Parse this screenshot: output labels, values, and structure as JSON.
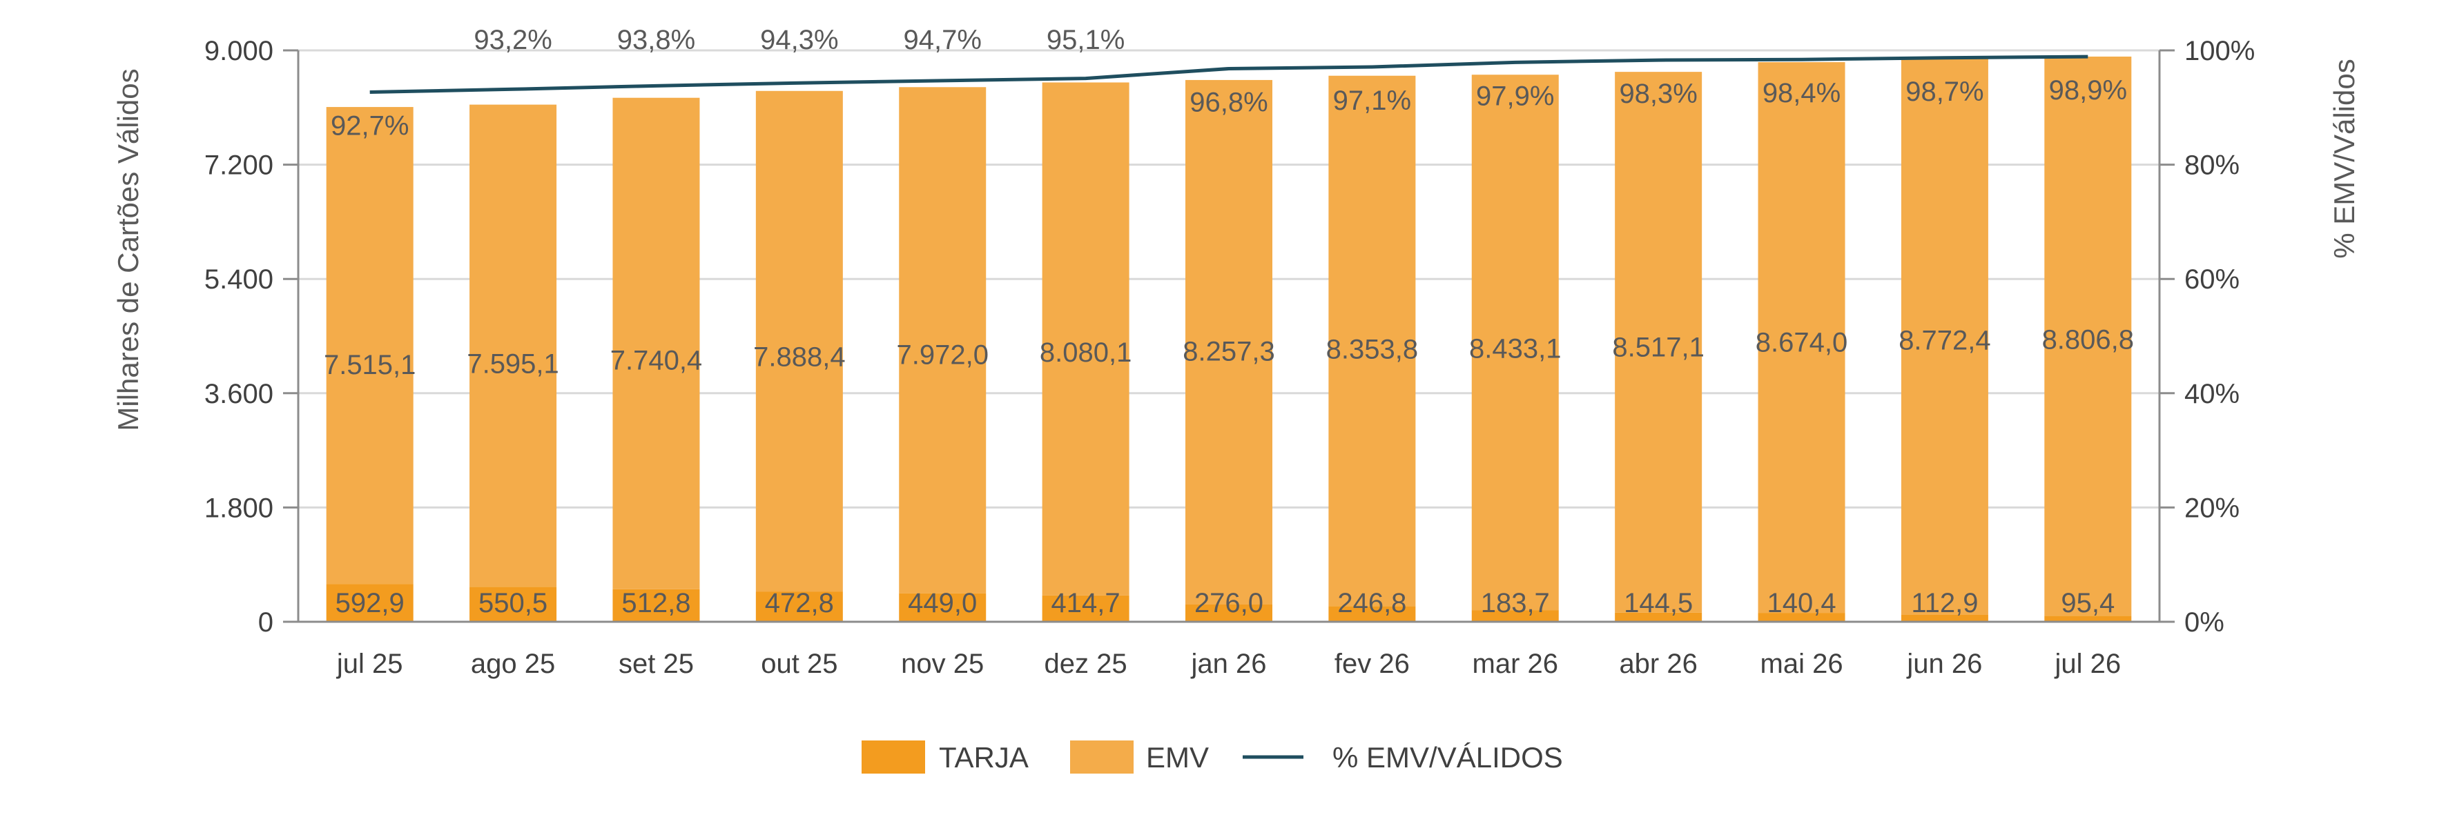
{
  "chart_data": {
    "type": "bar",
    "stacked": true,
    "categories": [
      "jul 25",
      "ago 25",
      "set 25",
      "out 25",
      "nov 25",
      "dez 25",
      "jan 26",
      "fev 26",
      "mar 26",
      "abr 26",
      "mai 26",
      "jun 26",
      "jul 26"
    ],
    "series": [
      {
        "name": "TARJA",
        "color": "#F39C1F",
        "values": [
          592.9,
          550.5,
          512.8,
          472.8,
          449.0,
          414.7,
          276.0,
          246.8,
          183.7,
          144.5,
          140.4,
          112.9,
          95.4
        ],
        "labels": [
          "592,9",
          "550,5",
          "512,8",
          "472,8",
          "449,0",
          "414,7",
          "276,0",
          "246,8",
          "183,7",
          "144,5",
          "140,4",
          "112,9",
          "95,4"
        ]
      },
      {
        "name": "EMV",
        "color": "#F4AC4A",
        "values": [
          7515.1,
          7595.1,
          7740.4,
          7888.4,
          7972.0,
          8080.1,
          8257.3,
          8353.8,
          8433.1,
          8517.1,
          8674.0,
          8772.4,
          8806.8
        ],
        "labels": [
          "7.515,1",
          "7.595,1",
          "7.740,4",
          "7.888,4",
          "7.972,0",
          "8.080,1",
          "8.257,3",
          "8.353,8",
          "8.433,1",
          "8.517,1",
          "8.674,0",
          "8.772,4",
          "8.806,8"
        ]
      }
    ],
    "line_series": {
      "name": "% EMV/VÁLIDOS",
      "color": "#1F4E5F",
      "values": [
        92.7,
        93.2,
        93.8,
        94.3,
        94.7,
        95.1,
        96.8,
        97.1,
        97.9,
        98.3,
        98.4,
        98.7,
        98.9
      ],
      "labels": [
        "92,7%",
        "93,2%",
        "93,8%",
        "94,3%",
        "94,7%",
        "95,1%",
        "96,8%",
        "97,1%",
        "97,9%",
        "98,3%",
        "98,4%",
        "98,7%",
        "98,9%"
      ],
      "label_above": [
        false,
        true,
        true,
        true,
        true,
        true,
        false,
        false,
        false,
        false,
        false,
        false,
        false
      ]
    },
    "ylabel": "Milhares de Cartões Válidos",
    "y2label": "% EMV/Válidos",
    "ylim": [
      0,
      9000
    ],
    "y2lim": [
      0,
      100
    ],
    "yticks": [
      {
        "value": 0,
        "label": "0"
      },
      {
        "value": 1800,
        "label": "1.800"
      },
      {
        "value": 3600,
        "label": "3.600"
      },
      {
        "value": 5400,
        "label": "5.400"
      },
      {
        "value": 7200,
        "label": "7.200"
      },
      {
        "value": 9000,
        "label": "9.000"
      }
    ],
    "y2ticks": [
      {
        "value": 0,
        "label": "0%"
      },
      {
        "value": 20,
        "label": "20%"
      },
      {
        "value": 40,
        "label": "40%"
      },
      {
        "value": 60,
        "label": "60%"
      },
      {
        "value": 80,
        "label": "80%"
      },
      {
        "value": 100,
        "label": "100%"
      }
    ],
    "grid": true,
    "legend_position": "bottom-center"
  }
}
